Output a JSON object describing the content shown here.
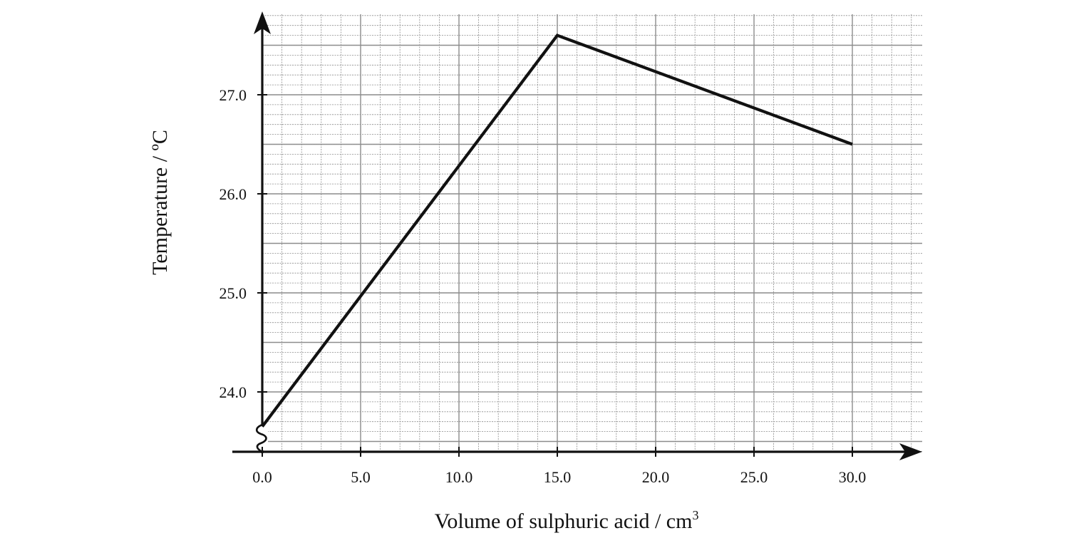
{
  "chart_data": {
    "type": "line",
    "xlabel": "Volume of sulphuric acid / cm",
    "xlabel_superscript": "3",
    "ylabel": "Temperature / ºC",
    "xlim": [
      0.0,
      33.0
    ],
    "ylim": [
      23.4,
      27.8
    ],
    "x_ticks": [
      "0.0",
      "5.0",
      "10.0",
      "15.0",
      "20.0",
      "25.0",
      "30.0"
    ],
    "y_ticks": [
      "24.0",
      "25.0",
      "26.0",
      "27.0"
    ],
    "y_axis_break": true,
    "grid": true,
    "series": [
      {
        "x": [
          0.0,
          15.0,
          30.0
        ],
        "y": [
          23.65,
          27.6,
          26.5
        ]
      }
    ],
    "colors": {
      "line": "#111111",
      "grid": "#8c8c8c",
      "axis": "#111111"
    }
  }
}
